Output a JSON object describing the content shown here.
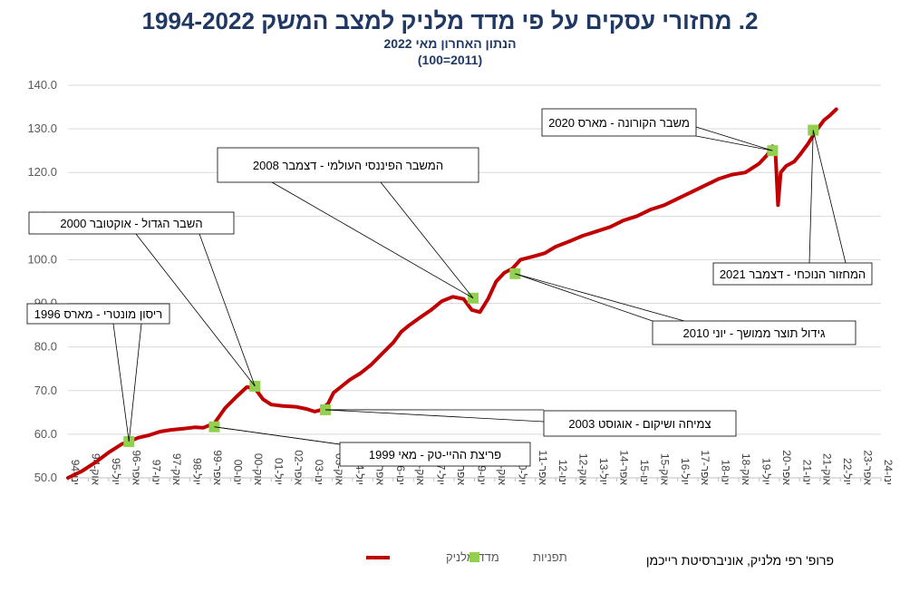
{
  "chart_data": {
    "type": "line",
    "title": "2. מחזורי עסקים על פי מדד מלניק למצב המשק 1994-2022",
    "subtitle": "הנתון האחרון מאי 2022",
    "subtitle2": "(2011=100)",
    "ylim": [
      50,
      140
    ],
    "yticks": [
      "50.0",
      "60.0",
      "70.0",
      "80.0",
      "90.0",
      "100.0",
      "110.0",
      "120.0",
      "130.0",
      "140.0"
    ],
    "xlim": [
      1994.0,
      2024.0
    ],
    "xticks": [
      {
        "x": 1994.0,
        "label": "ינו-94"
      },
      {
        "x": 1994.75,
        "label": "אוק-94"
      },
      {
        "x": 1995.5,
        "label": "יול-95"
      },
      {
        "x": 1996.25,
        "label": "אפר-96"
      },
      {
        "x": 1997.0,
        "label": "ינו-97"
      },
      {
        "x": 1997.75,
        "label": "אוק-97"
      },
      {
        "x": 1998.5,
        "label": "יול-98"
      },
      {
        "x": 1999.25,
        "label": "אפר-99"
      },
      {
        "x": 2000.0,
        "label": "ינו-00"
      },
      {
        "x": 2000.75,
        "label": "אוק-00"
      },
      {
        "x": 2001.5,
        "label": "יול-01"
      },
      {
        "x": 2002.25,
        "label": "אפר-02"
      },
      {
        "x": 2003.0,
        "label": "ינו-03"
      },
      {
        "x": 2003.75,
        "label": "אוק-03"
      },
      {
        "x": 2004.5,
        "label": "יול-04"
      },
      {
        "x": 2005.25,
        "label": "אפר-05"
      },
      {
        "x": 2006.0,
        "label": "ינו-06"
      },
      {
        "x": 2006.75,
        "label": "אוק-06"
      },
      {
        "x": 2007.5,
        "label": "יול-07"
      },
      {
        "x": 2008.25,
        "label": "אפר-08"
      },
      {
        "x": 2009.0,
        "label": "ינו-09"
      },
      {
        "x": 2009.75,
        "label": "אוק-09"
      },
      {
        "x": 2010.5,
        "label": "יול-10"
      },
      {
        "x": 2011.25,
        "label": "אפר-11"
      },
      {
        "x": 2012.0,
        "label": "ינו-12"
      },
      {
        "x": 2012.75,
        "label": "אוק-12"
      },
      {
        "x": 2013.5,
        "label": "יול-13"
      },
      {
        "x": 2014.25,
        "label": "אפר-14"
      },
      {
        "x": 2015.0,
        "label": "ינו-15"
      },
      {
        "x": 2015.75,
        "label": "אוק-15"
      },
      {
        "x": 2016.5,
        "label": "יול-16"
      },
      {
        "x": 2017.25,
        "label": "אפר-17"
      },
      {
        "x": 2018.0,
        "label": "ינו-18"
      },
      {
        "x": 2018.75,
        "label": "אוק-18"
      },
      {
        "x": 2019.5,
        "label": "יול-19"
      },
      {
        "x": 2020.25,
        "label": "אפר-20"
      },
      {
        "x": 2021.0,
        "label": "ינו-21"
      },
      {
        "x": 2021.75,
        "label": "אוק-21"
      },
      {
        "x": 2022.5,
        "label": "יול-22"
      },
      {
        "x": 2023.25,
        "label": "אפר-23"
      },
      {
        "x": 2024.0,
        "label": "ינו-24"
      }
    ],
    "series": [
      {
        "name": "מדד מלניק",
        "color": "#c00000",
        "x": [
          1994.0,
          1994.5,
          1995.0,
          1995.5,
          1996.0,
          1996.25,
          1996.6,
          1997.0,
          1997.4,
          1997.8,
          1998.3,
          1998.7,
          1999.0,
          1999.4,
          1999.8,
          2000.2,
          2000.6,
          2000.9,
          2001.2,
          2001.5,
          2001.9,
          2002.4,
          2002.8,
          2003.1,
          2003.3,
          2003.6,
          2003.8,
          2004.1,
          2004.4,
          2004.8,
          2005.2,
          2005.6,
          2006.0,
          2006.3,
          2006.6,
          2007.0,
          2007.4,
          2007.8,
          2008.2,
          2008.6,
          2008.9,
          2009.2,
          2009.5,
          2009.8,
          2010.1,
          2010.4,
          2010.7,
          2011.2,
          2011.6,
          2012.0,
          2012.5,
          2013.0,
          2013.5,
          2014.0,
          2014.5,
          2015.0,
          2015.5,
          2016.0,
          2016.5,
          2017.0,
          2017.5,
          2018.0,
          2018.5,
          2019.0,
          2019.5,
          2019.8,
          2020.0,
          2020.1,
          2020.2,
          2020.3,
          2020.5,
          2020.8,
          2021.0,
          2021.3,
          2021.6,
          2021.9,
          2022.1,
          2022.35
        ],
        "values": [
          50.0,
          51.5,
          53.5,
          55.8,
          57.8,
          58.3,
          59.2,
          59.8,
          60.6,
          61.0,
          61.3,
          61.6,
          61.5,
          62.5,
          66.0,
          68.5,
          70.8,
          70.5,
          68.0,
          66.8,
          66.5,
          66.3,
          65.8,
          65.2,
          65.5,
          67.0,
          69.5,
          71.0,
          72.5,
          74.0,
          76.0,
          78.5,
          81.0,
          83.5,
          85.0,
          86.8,
          88.5,
          90.5,
          91.5,
          91.0,
          88.5,
          88.0,
          91.0,
          95.0,
          97.0,
          98.0,
          100.0,
          100.8,
          101.5,
          103.0,
          104.2,
          105.5,
          106.5,
          107.5,
          109.0,
          110.0,
          111.5,
          112.5,
          114.0,
          115.5,
          117.0,
          118.5,
          119.5,
          120.0,
          122.0,
          124.0,
          126.0,
          125.5,
          112.5,
          120.0,
          121.5,
          122.5,
          124.0,
          126.5,
          129.5,
          132.0,
          133.0,
          134.5
        ]
      },
      {
        "name": "תפניות",
        "color": "#92d050",
        "x": [
          1996.25,
          1999.4,
          2000.9,
          2003.5,
          2008.95,
          2010.5,
          2020.0,
          2021.5
        ],
        "values": [
          58.3,
          61.7,
          71.0,
          65.6,
          91.2,
          96.8,
          125.0,
          129.7
        ]
      }
    ],
    "annotations": [
      {
        "text": "ריסון מונטרי - מארס 1996",
        "point": 0
      },
      {
        "text": "פריצת ההיי-טק - מאי 1999",
        "point": 1
      },
      {
        "text": "השבר הגדול - אוקטובר 2000",
        "point": 2
      },
      {
        "text": "צמיחה ושיקום - אוגוסט 2003",
        "point": 3
      },
      {
        "text": "המשבר הפיננסי העולמי - דצמבר 2008",
        "point": 4
      },
      {
        "text": "גידול תוצר ממושך - יוני 2010",
        "point": 5
      },
      {
        "text": "משבר הקורונה - מארס 2020",
        "point": 6
      },
      {
        "text": "המחזור הנוכחי - דצמבר 2021",
        "point": 7
      }
    ],
    "legend": [
      {
        "name": "מדד מלניק",
        "kind": "line"
      },
      {
        "name": "תפניות",
        "kind": "marker"
      }
    ],
    "grid": true,
    "legend_position": "bottom"
  },
  "credit": "פרופ' רפי מלניק, אוניברסיטת רייכמן"
}
